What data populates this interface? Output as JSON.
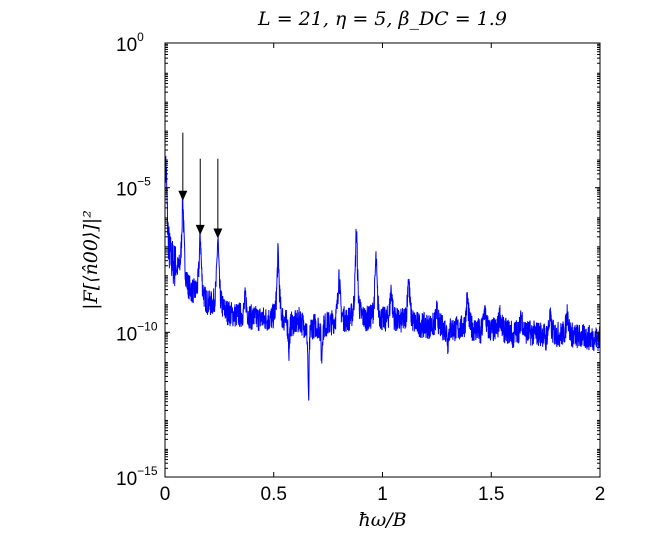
{
  "chart_data": {
    "type": "line",
    "title": "L = 21, η = 5, β_DC = 1.9",
    "xlabel": "ħω/B",
    "ylabel": "|F[⟨n̂00⟩]|²",
    "xlim": [
      0,
      2
    ],
    "ylim": [
      1e-15,
      1
    ],
    "yscale": "log",
    "grid": false,
    "x_ticks": [
      {
        "value": 0,
        "label": "0"
      },
      {
        "value": 0.5,
        "label": "0.5"
      },
      {
        "value": 1,
        "label": "1"
      },
      {
        "value": 1.5,
        "label": "1.5"
      },
      {
        "value": 2,
        "label": "2"
      }
    ],
    "y_ticks": [
      {
        "value": 1,
        "base": "10",
        "exp": "0"
      },
      {
        "value": 1e-05,
        "base": "10",
        "exp": "−5"
      },
      {
        "value": 1e-10,
        "base": "10",
        "exp": "−10"
      },
      {
        "value": 1e-15,
        "base": "10",
        "exp": "−15"
      }
    ],
    "series": [
      {
        "color": "#0000ff",
        "baseline": [
          [
            0.0,
            2e-07
          ],
          [
            0.02,
            3e-08
          ],
          [
            0.06,
            1e-08
          ],
          [
            0.1,
            3e-09
          ],
          [
            0.15,
            1.5e-09
          ],
          [
            0.2,
            8e-10
          ],
          [
            0.3,
            4e-10
          ],
          [
            0.4,
            3e-10
          ],
          [
            0.5,
            2.5e-10
          ],
          [
            0.6,
            2e-10
          ],
          [
            0.7,
            1.8e-10
          ],
          [
            0.8,
            2e-10
          ],
          [
            0.9,
            2.5e-10
          ],
          [
            1.0,
            2.2e-10
          ],
          [
            1.1,
            2e-10
          ],
          [
            1.2,
            1.6e-10
          ],
          [
            1.3,
            1.3e-10
          ],
          [
            1.4,
            1.2e-10
          ],
          [
            1.5,
            1.1e-10
          ],
          [
            1.6,
            1e-10
          ],
          [
            1.7,
            9e-11
          ],
          [
            1.8,
            8e-11
          ],
          [
            1.9,
            7e-11
          ],
          [
            2.0,
            6e-11
          ]
        ],
        "peaks": [
          {
            "x": 0.004,
            "y": 5e-05
          },
          {
            "x": 0.082,
            "y": 3e-06
          },
          {
            "x": 0.162,
            "y": 2e-07
          },
          {
            "x": 0.243,
            "y": 1.5e-07
          },
          {
            "x": 0.37,
            "y": 1.5e-09
          },
          {
            "x": 0.52,
            "y": 5e-08
          },
          {
            "x": 0.62,
            "y": 3e-10
          },
          {
            "x": 0.8,
            "y": 1e-08
          },
          {
            "x": 0.88,
            "y": 3e-07
          },
          {
            "x": 0.97,
            "y": 3e-08
          },
          {
            "x": 1.04,
            "y": 3e-09
          },
          {
            "x": 1.12,
            "y": 8e-09
          },
          {
            "x": 1.25,
            "y": 5e-10
          },
          {
            "x": 1.39,
            "y": 1.5e-09
          },
          {
            "x": 1.47,
            "y": 6e-10
          },
          {
            "x": 1.54,
            "y": 4e-10
          },
          {
            "x": 1.64,
            "y": 3.5e-10
          },
          {
            "x": 1.77,
            "y": 3e-10
          },
          {
            "x": 1.85,
            "y": 5e-10
          }
        ],
        "dips": [
          {
            "x": 0.57,
            "y": 2e-11
          },
          {
            "x": 0.66,
            "y": 3e-13
          },
          {
            "x": 0.72,
            "y": 1e-11
          },
          {
            "x": 1.3,
            "y": 4e-11
          },
          {
            "x": 1.45,
            "y": 5e-11
          },
          {
            "x": 1.6,
            "y": 5e-11
          },
          {
            "x": 1.75,
            "y": 4e-11
          }
        ]
      }
    ],
    "annotations": [
      {
        "type": "arrow",
        "x": 0.082,
        "y_from": 0.0008,
        "y_to": 3e-06
      },
      {
        "type": "arrow",
        "x": 0.162,
        "y_from": 0.0001,
        "y_to": 2e-07
      },
      {
        "type": "arrow",
        "x": 0.243,
        "y_from": 0.0001,
        "y_to": 1.5e-07
      }
    ]
  }
}
